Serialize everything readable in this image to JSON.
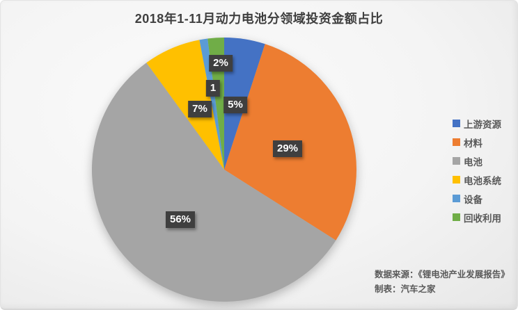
{
  "title": "2018年1-11月动力电池分领域投资金额占比",
  "chart_data": {
    "type": "pie",
    "title": "2018年1-11月动力电池分领域投资金额占比",
    "categories": [
      "上游资源",
      "材料",
      "电池",
      "电池系统",
      "设备",
      "回收利用"
    ],
    "values": [
      5,
      29,
      56,
      7,
      1,
      2
    ],
    "unit": "%",
    "labels": [
      "5%",
      "29%",
      "56%",
      "7%",
      "1",
      "2%"
    ],
    "colors": [
      "#4472C4",
      "#ED7D31",
      "#A5A5A5",
      "#FFC000",
      "#5B9BD5",
      "#70AD47"
    ],
    "start_angle_deg": 0,
    "direction": "clockwise",
    "legend_position": "right",
    "label_style": {
      "background": "#3f3f3f",
      "text_color": "#ffffff"
    }
  },
  "footer": {
    "source_line": "数据来源：《锂电池产业发展报告》",
    "credit_line": "制表：汽车之家"
  }
}
